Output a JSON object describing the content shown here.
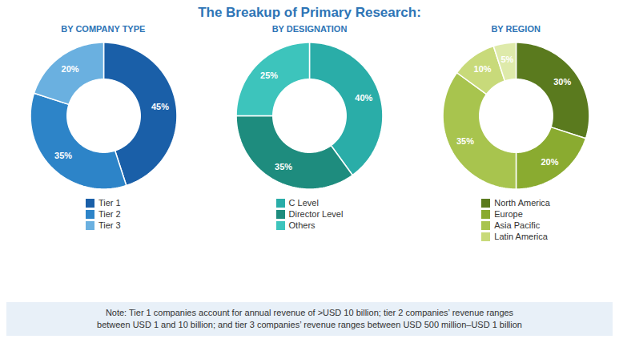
{
  "title": "The Breakup of Primary Research:",
  "annotations": [
    "Note: Tier 1 companies account for annual revenue of >USD 10 billion; tier 2 companies’ revenue ranges\nbetween USD 1 and 10 billion; and tier 3 companies’ revenue ranges between USD 500 million–USD 1 billion"
  ],
  "chart_data": [
    {
      "type": "pie",
      "subtitle": "BY COMPANY TYPE",
      "categories": [
        "Tier 1",
        "Tier 2",
        "Tier 3"
      ],
      "values": [
        45,
        35,
        20
      ],
      "value_labels": [
        "45%",
        "35%",
        "20%"
      ],
      "colors": [
        "#1a5fa8",
        "#2d84c8",
        "#6ab0e0"
      ],
      "data_labels": true,
      "legend": "bottom"
    },
    {
      "type": "pie",
      "subtitle": "BY DESIGNATION",
      "categories": [
        "C Level",
        "Director Level",
        "Others"
      ],
      "values": [
        40,
        35,
        25
      ],
      "value_labels": [
        "40%",
        "35%",
        "25%"
      ],
      "colors": [
        "#2aada8",
        "#1e8c7e",
        "#3dc4bc"
      ],
      "data_labels": true,
      "legend": "bottom"
    },
    {
      "type": "pie",
      "subtitle": "BY REGION",
      "categories": [
        "North America",
        "Europe",
        "Asia Pacific",
        "Latin America",
        null
      ],
      "values": [
        30,
        20,
        35,
        10,
        5
      ],
      "value_labels": [
        "30%",
        "20%",
        "35%",
        "10%",
        "5%"
      ],
      "colors": [
        "#5a7a1e",
        "#8aab30",
        "#a8c44e",
        "#c8da7a",
        "#deeaaa"
      ],
      "data_labels": true,
      "legend": "bottom"
    }
  ]
}
